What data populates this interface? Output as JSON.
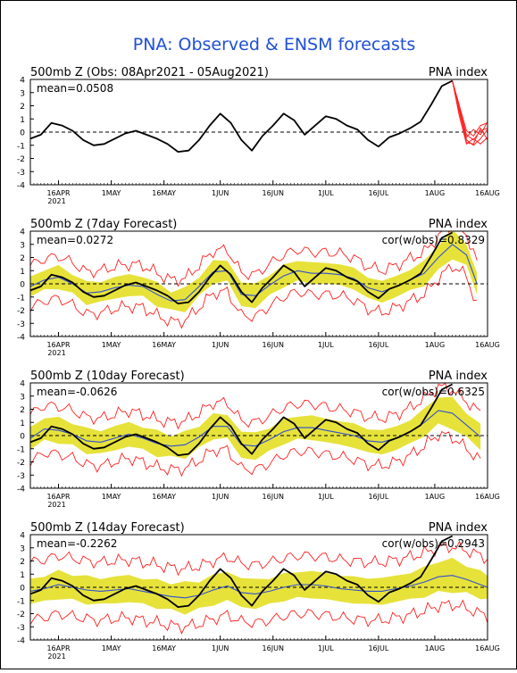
{
  "figure": {
    "title": "PNA: Observed & ENSM forecasts",
    "title_color": "#1e4fd8",
    "background": "#ffffff",
    "frame_color": "#000000",
    "colors": {
      "observed": "#000000",
      "ensemble_mean": "#3050d0",
      "spread_band": "#e6e23a",
      "envelope": "#ff2020",
      "zero_line": "#000000"
    }
  },
  "chart_data": [
    {
      "type": "line",
      "title": "500mb  Z (Obs: 08Apr2021 - 05Aug2021)",
      "right_label": "PNA index",
      "mean_label": "mean=0.0508",
      "cor_label": "",
      "xlim_days": [
        0,
        130
      ],
      "x_ticks": [
        "16APR",
        "1MAY",
        "16MAY",
        "1JUN",
        "16JUN",
        "1JUL",
        "16JUL",
        "1AUG",
        "16AUG"
      ],
      "x_tick_days": [
        8,
        23,
        38,
        54,
        69,
        84,
        99,
        115,
        130
      ],
      "year_label": "2021",
      "ylim": [
        -4,
        4
      ],
      "y_ticks": [
        -4,
        -3,
        -2,
        -1,
        0,
        1,
        2,
        3,
        4
      ],
      "grid": false,
      "observed": {
        "days": [
          0,
          3,
          6,
          9,
          12,
          15,
          18,
          21,
          24,
          27,
          30,
          33,
          36,
          39,
          42,
          45,
          48,
          51,
          54,
          57,
          60,
          63,
          66,
          69,
          72,
          75,
          78,
          81,
          84,
          87,
          90,
          93,
          96,
          99,
          102,
          105,
          108,
          111,
          114,
          117,
          120
        ],
        "values": [
          -0.5,
          -0.2,
          0.7,
          0.5,
          0.1,
          -0.6,
          -1.0,
          -0.9,
          -0.5,
          -0.1,
          0.1,
          -0.2,
          -0.5,
          -0.9,
          -1.5,
          -1.4,
          -0.6,
          0.5,
          1.4,
          0.7,
          -0.6,
          -1.4,
          -0.3,
          0.5,
          1.4,
          0.9,
          -0.2,
          0.5,
          1.2,
          1.0,
          0.5,
          0.2,
          -0.6,
          -1.1,
          -0.4,
          -0.1,
          0.3,
          0.8,
          2.1,
          3.5,
          3.9
        ]
      },
      "forecast_members": [
        {
          "days": [
            120,
            122,
            124,
            126,
            128,
            130
          ],
          "values": [
            3.9,
            1.8,
            -0.2,
            -0.6,
            0.1,
            0.3
          ]
        },
        {
          "days": [
            120,
            122,
            124,
            126,
            128,
            130
          ],
          "values": [
            3.9,
            1.5,
            -0.6,
            -1.0,
            -0.5,
            0.2
          ]
        },
        {
          "days": [
            120,
            122,
            124,
            126,
            128,
            130
          ],
          "values": [
            3.9,
            2.0,
            0.1,
            -0.3,
            0.5,
            0.7
          ]
        },
        {
          "days": [
            120,
            122,
            124,
            126,
            128,
            130
          ],
          "values": [
            3.9,
            1.2,
            -0.9,
            -0.5,
            -0.9,
            -0.4
          ]
        },
        {
          "days": [
            120,
            122,
            124,
            126,
            128,
            130
          ],
          "values": [
            3.9,
            1.6,
            -0.4,
            0.2,
            -0.2,
            0.8
          ]
        },
        {
          "days": [
            120,
            122,
            124,
            126,
            128,
            130
          ],
          "values": [
            3.9,
            1.9,
            -0.8,
            -0.9,
            0.3,
            -0.6
          ]
        }
      ]
    },
    {
      "type": "line",
      "title": "500mb  Z (7day Forecast)",
      "right_label": "PNA index",
      "mean_label": "mean=0.0272",
      "cor_label": "cor(w/obs)=0.8329",
      "xlim_days": [
        0,
        130
      ],
      "x_ticks": [
        "16APR",
        "1MAY",
        "16MAY",
        "1JUN",
        "16JUN",
        "1JUL",
        "16JUL",
        "1AUG",
        "16AUG"
      ],
      "x_tick_days": [
        8,
        23,
        38,
        54,
        69,
        84,
        99,
        115,
        130
      ],
      "year_label": "2021",
      "ylim": [
        -4,
        4
      ],
      "y_ticks": [
        -4,
        -3,
        -2,
        -1,
        0,
        1,
        2,
        3,
        4
      ],
      "grid": false,
      "observed": {
        "days": [
          0,
          3,
          6,
          9,
          12,
          15,
          18,
          21,
          24,
          27,
          30,
          33,
          36,
          39,
          42,
          45,
          48,
          51,
          54,
          57,
          60,
          63,
          66,
          69,
          72,
          75,
          78,
          81,
          84,
          87,
          90,
          93,
          96,
          99,
          102,
          105,
          108,
          111,
          114,
          117,
          120
        ],
        "values": [
          -0.5,
          -0.2,
          0.7,
          0.5,
          0.1,
          -0.6,
          -1.0,
          -0.9,
          -0.5,
          -0.1,
          0.1,
          -0.2,
          -0.5,
          -0.9,
          -1.5,
          -1.4,
          -0.6,
          0.5,
          1.4,
          0.7,
          -0.6,
          -1.4,
          -0.3,
          0.5,
          1.4,
          0.9,
          -0.2,
          0.5,
          1.2,
          1.0,
          0.5,
          0.2,
          -0.6,
          -1.1,
          -0.4,
          -0.1,
          0.3,
          0.8,
          2.1,
          3.5,
          3.9
        ]
      },
      "ensemble_mean": {
        "days": [
          0,
          4,
          8,
          12,
          16,
          20,
          24,
          28,
          32,
          36,
          40,
          44,
          48,
          52,
          56,
          60,
          64,
          68,
          72,
          76,
          80,
          84,
          88,
          92,
          96,
          100,
          104,
          108,
          112,
          116,
          120,
          124,
          127
        ],
        "values": [
          -0.2,
          0.3,
          0.5,
          0.0,
          -0.7,
          -0.6,
          -0.3,
          -0.1,
          -0.2,
          -0.8,
          -1.3,
          -1.2,
          -0.2,
          0.9,
          1.0,
          -0.8,
          -0.9,
          -0.1,
          0.6,
          1.0,
          0.8,
          0.8,
          0.7,
          0.4,
          -0.3,
          -0.6,
          -0.2,
          0.3,
          0.8,
          2.0,
          3.0,
          2.2,
          0.0
        ]
      },
      "spread": [
        0.7,
        0.8,
        0.8,
        0.8,
        0.8,
        0.8,
        0.8,
        0.8,
        0.8,
        0.8,
        0.8,
        0.8,
        0.8,
        0.8,
        0.8,
        0.9,
        0.9,
        0.8,
        0.8,
        0.8,
        0.8,
        0.8,
        0.8,
        0.8,
        0.8,
        0.8,
        0.8,
        0.8,
        0.9,
        1.0,
        1.0,
        0.9,
        0.8
      ],
      "envelope_width": 1.6
    },
    {
      "type": "line",
      "title": "500mb  Z (10day Forecast)",
      "right_label": "PNA index",
      "mean_label": "mean=-0.0626",
      "cor_label": "cor(w/obs)=0.6325",
      "xlim_days": [
        0,
        130
      ],
      "x_ticks": [
        "16APR",
        "1MAY",
        "16MAY",
        "1JUN",
        "16JUN",
        "1JUL",
        "16JUL",
        "1AUG",
        "16AUG"
      ],
      "x_tick_days": [
        8,
        23,
        38,
        54,
        69,
        84,
        99,
        115,
        130
      ],
      "year_label": "2021",
      "ylim": [
        -4,
        4
      ],
      "y_ticks": [
        -4,
        -3,
        -2,
        -1,
        0,
        1,
        2,
        3,
        4
      ],
      "grid": false,
      "observed": {
        "days": [
          0,
          3,
          6,
          9,
          12,
          15,
          18,
          21,
          24,
          27,
          30,
          33,
          36,
          39,
          42,
          45,
          48,
          51,
          54,
          57,
          60,
          63,
          66,
          69,
          72,
          75,
          78,
          81,
          84,
          87,
          90,
          93,
          96,
          99,
          102,
          105,
          108,
          111,
          114,
          117,
          120
        ],
        "values": [
          -0.5,
          -0.2,
          0.7,
          0.5,
          0.1,
          -0.6,
          -1.0,
          -0.9,
          -0.5,
          -0.1,
          0.1,
          -0.2,
          -0.5,
          -0.9,
          -1.5,
          -1.4,
          -0.6,
          0.5,
          1.4,
          0.7,
          -0.6,
          -1.4,
          -0.3,
          0.5,
          1.4,
          0.9,
          -0.2,
          0.5,
          1.2,
          1.0,
          0.5,
          0.2,
          -0.6,
          -1.1,
          -0.4,
          -0.1,
          0.3,
          0.8,
          2.1,
          3.5,
          3.9
        ]
      },
      "ensemble_mean": {
        "days": [
          0,
          4,
          8,
          12,
          16,
          20,
          24,
          28,
          32,
          36,
          40,
          44,
          48,
          52,
          56,
          60,
          64,
          68,
          72,
          76,
          80,
          84,
          88,
          92,
          96,
          100,
          104,
          108,
          112,
          116,
          120,
          124,
          128
        ],
        "values": [
          -0.2,
          0.5,
          0.4,
          0.1,
          -0.4,
          -0.5,
          -0.2,
          0.1,
          -0.2,
          -0.6,
          -0.8,
          -0.7,
          -0.1,
          0.7,
          0.7,
          -0.7,
          -0.8,
          -0.3,
          0.3,
          0.6,
          0.6,
          0.4,
          0.2,
          0.0,
          -0.4,
          -0.5,
          -0.2,
          0.3,
          1.0,
          1.9,
          1.7,
          0.8,
          -0.1
        ]
      },
      "spread": [
        0.8,
        0.9,
        0.9,
        0.9,
        0.9,
        0.9,
        0.9,
        0.9,
        0.9,
        0.9,
        0.9,
        0.9,
        0.9,
        0.9,
        0.9,
        1.0,
        1.0,
        0.9,
        0.9,
        0.9,
        0.9,
        0.9,
        0.9,
        0.9,
        0.9,
        0.9,
        0.9,
        0.9,
        1.0,
        1.1,
        1.1,
        1.0,
        0.9
      ],
      "envelope_width": 1.8
    },
    {
      "type": "line",
      "title": "500mb  Z (14day Forecast)",
      "right_label": "PNA index",
      "mean_label": "mean=-0.2262",
      "cor_label": "cor(w/obs)=0.2943",
      "xlim_days": [
        0,
        130
      ],
      "x_ticks": [
        "16APR",
        "1MAY",
        "16MAY",
        "1JUN",
        "16JUN",
        "1JUL",
        "16JUL",
        "1AUG",
        "16AUG"
      ],
      "x_tick_days": [
        8,
        23,
        38,
        54,
        69,
        84,
        99,
        115,
        130
      ],
      "year_label": "2021",
      "ylim": [
        -4,
        4
      ],
      "y_ticks": [
        -4,
        -3,
        -2,
        -1,
        0,
        1,
        2,
        3,
        4
      ],
      "grid": false,
      "observed": {
        "days": [
          0,
          3,
          6,
          9,
          12,
          15,
          18,
          21,
          24,
          27,
          30,
          33,
          36,
          39,
          42,
          45,
          48,
          51,
          54,
          57,
          60,
          63,
          66,
          69,
          72,
          75,
          78,
          81,
          84,
          87,
          90,
          93,
          96,
          99,
          102,
          105,
          108,
          111,
          114,
          117,
          120
        ],
        "values": [
          -0.5,
          -0.2,
          0.7,
          0.5,
          0.1,
          -0.6,
          -1.0,
          -0.9,
          -0.5,
          -0.1,
          0.1,
          -0.2,
          -0.5,
          -0.9,
          -1.5,
          -1.4,
          -0.6,
          0.5,
          1.4,
          0.7,
          -0.6,
          -1.4,
          -0.3,
          0.5,
          1.4,
          0.9,
          -0.2,
          0.5,
          1.2,
          1.0,
          0.5,
          0.2,
          -0.6,
          -1.1,
          -0.4,
          -0.1,
          0.3,
          0.8,
          2.1,
          3.5,
          3.9
        ]
      },
      "ensemble_mean": {
        "days": [
          0,
          4,
          8,
          12,
          16,
          20,
          24,
          28,
          32,
          36,
          40,
          44,
          48,
          52,
          56,
          60,
          64,
          68,
          72,
          76,
          80,
          84,
          88,
          92,
          96,
          100,
          104,
          108,
          112,
          116,
          120,
          124,
          128,
          130
        ],
        "values": [
          -0.3,
          -0.1,
          0.2,
          0.0,
          -0.2,
          -0.3,
          -0.2,
          -0.1,
          -0.3,
          -0.5,
          -0.7,
          -0.8,
          -0.6,
          -0.2,
          0.1,
          -0.4,
          -0.5,
          -0.3,
          0.0,
          0.2,
          0.2,
          0.1,
          -0.1,
          -0.2,
          -0.3,
          -0.3,
          -0.1,
          0.1,
          0.4,
          0.8,
          0.9,
          0.6,
          0.2,
          0.0
        ]
      },
      "spread": [
        0.9,
        1.0,
        1.0,
        1.0,
        1.0,
        1.0,
        1.0,
        1.0,
        1.0,
        1.0,
        1.1,
        1.1,
        1.1,
        1.1,
        1.1,
        1.1,
        1.1,
        1.0,
        1.0,
        1.0,
        1.0,
        1.0,
        1.0,
        1.0,
        1.0,
        1.0,
        1.0,
        1.0,
        1.1,
        1.2,
        1.2,
        1.1,
        1.0,
        1.0
      ],
      "envelope_width": 2.2
    }
  ]
}
